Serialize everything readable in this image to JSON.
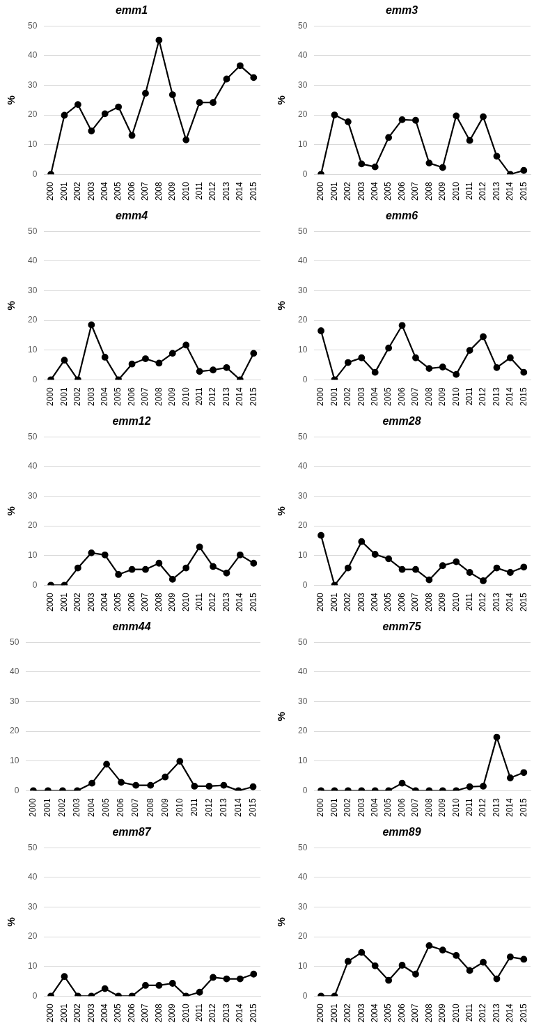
{
  "chart_data": [
    {
      "type": "line",
      "title": "emm1",
      "ylabel": "%",
      "categories": [
        "2000",
        "2001",
        "2002",
        "2003",
        "2004",
        "2005",
        "2006",
        "2007",
        "2008",
        "2009",
        "2010",
        "2011",
        "2012",
        "2013",
        "2014",
        "2015"
      ],
      "series": [
        {
          "color": "#000000",
          "values": [
            0,
            19.9,
            23.5,
            14.6,
            20.4,
            22.7,
            13.1,
            27.3,
            45.2,
            26.8,
            11.6,
            24.2,
            24.2,
            32.1,
            36.6,
            32.6
          ]
        }
      ],
      "ylim": [
        0,
        50
      ],
      "yticks": [
        0,
        10,
        20,
        30,
        40,
        50
      ],
      "grid": "y",
      "marker": "circle",
      "legend": false
    },
    {
      "type": "line",
      "title": "emm3",
      "ylabel": "%",
      "categories": [
        "2000",
        "2001",
        "2002",
        "2003",
        "2004",
        "2005",
        "2006",
        "2007",
        "2008",
        "2009",
        "2010",
        "2011",
        "2012",
        "2013",
        "2014",
        "2015"
      ],
      "series": [
        {
          "color": "#000000",
          "values": [
            0,
            20,
            17.7,
            3.5,
            2.5,
            12.4,
            18.4,
            18.2,
            3.8,
            2.3,
            19.7,
            11.4,
            19.4,
            6.1,
            0,
            1.3
          ]
        }
      ],
      "ylim": [
        0,
        50
      ],
      "yticks": [
        0,
        10,
        20,
        30,
        40,
        50
      ],
      "grid": "y",
      "marker": "circle",
      "legend": false
    },
    {
      "type": "line",
      "title": "emm4",
      "ylabel": "%",
      "categories": [
        "2000",
        "2001",
        "2002",
        "2003",
        "2004",
        "2005",
        "2006",
        "2007",
        "2008",
        "2009",
        "2010",
        "2011",
        "2012",
        "2013",
        "2014",
        "2015"
      ],
      "series": [
        {
          "color": "#000000",
          "values": [
            0,
            6.6,
            0,
            18.5,
            7.6,
            0,
            5.3,
            7.1,
            5.6,
            8.9,
            11.7,
            2.8,
            3.3,
            4.1,
            0,
            8.9
          ]
        }
      ],
      "ylim": [
        0,
        50
      ],
      "yticks": [
        0,
        10,
        20,
        30,
        40,
        50
      ],
      "grid": "y",
      "marker": "circle",
      "legend": false
    },
    {
      "type": "line",
      "title": "emm6",
      "ylabel": "%",
      "categories": [
        "2000",
        "2001",
        "2002",
        "2003",
        "2004",
        "2005",
        "2006",
        "2007",
        "2008",
        "2009",
        "2010",
        "2011",
        "2012",
        "2013",
        "2014",
        "2015"
      ],
      "series": [
        {
          "color": "#000000",
          "values": [
            16.5,
            0,
            5.8,
            7.4,
            2.5,
            10.7,
            18.3,
            7.4,
            3.8,
            4.3,
            1.8,
            9.9,
            14.5,
            4.1,
            7.4,
            2.5
          ]
        }
      ],
      "ylim": [
        0,
        50
      ],
      "yticks": [
        0,
        10,
        20,
        30,
        40,
        50
      ],
      "grid": "y",
      "marker": "circle",
      "legend": false
    },
    {
      "type": "line",
      "title": "emm12",
      "ylabel": "%",
      "categories": [
        "2000",
        "2001",
        "2002",
        "2003",
        "2004",
        "2005",
        "2006",
        "2007",
        "2008",
        "2009",
        "2010",
        "2011",
        "2012",
        "2013",
        "2014",
        "2015"
      ],
      "series": [
        {
          "color": "#000000",
          "values": [
            0,
            0,
            5.8,
            10.9,
            10.2,
            3.6,
            5.3,
            5.3,
            7.4,
            2.0,
            5.8,
            12.9,
            6.3,
            4.1,
            10.2,
            7.4
          ]
        }
      ],
      "ylim": [
        0,
        50
      ],
      "yticks": [
        0,
        10,
        20,
        30,
        40,
        50
      ],
      "grid": "y",
      "marker": "circle",
      "legend": false
    },
    {
      "type": "line",
      "title": "emm28",
      "ylabel": "%",
      "categories": [
        "2000",
        "2001",
        "2002",
        "2003",
        "2004",
        "2005",
        "2006",
        "2007",
        "2008",
        "2009",
        "2010",
        "2011",
        "2012",
        "2013",
        "2014",
        "2015"
      ],
      "series": [
        {
          "color": "#000000",
          "values": [
            16.8,
            0,
            5.8,
            14.7,
            10.4,
            8.9,
            5.3,
            5.3,
            1.8,
            6.6,
            7.9,
            4.3,
            1.5,
            5.8,
            4.3,
            6.1
          ]
        }
      ],
      "ylim": [
        0,
        50
      ],
      "yticks": [
        0,
        10,
        20,
        30,
        40,
        50
      ],
      "grid": "y",
      "marker": "circle",
      "legend": false
    },
    {
      "type": "line",
      "title": "emm44",
      "categories": [
        "2000",
        "2001",
        "2002",
        "2003",
        "2004",
        "2005",
        "2006",
        "2007",
        "2008",
        "2009",
        "2010",
        "2011",
        "2012",
        "2013",
        "2014",
        "2015"
      ],
      "series": [
        {
          "color": "#000000",
          "values": [
            0,
            0,
            0,
            0,
            2.5,
            8.9,
            2.8,
            1.8,
            1.8,
            4.6,
            9.9,
            1.5,
            1.5,
            1.8,
            0,
            1.3
          ]
        }
      ],
      "ylim": [
        0,
        50
      ],
      "yticks": [
        0,
        10,
        20,
        30,
        40,
        50
      ],
      "grid": "y",
      "marker": "circle",
      "legend": false
    },
    {
      "type": "line",
      "title": "emm75",
      "ylabel": "%",
      "categories": [
        "2000",
        "2001",
        "2002",
        "2003",
        "2004",
        "2005",
        "2006",
        "2007",
        "2008",
        "2009",
        "2010",
        "2011",
        "2012",
        "2013",
        "2014",
        "2015"
      ],
      "series": [
        {
          "color": "#000000",
          "values": [
            0,
            0,
            0,
            0,
            0,
            0,
            2.5,
            0,
            0,
            0,
            0,
            1.3,
            1.5,
            18,
            4.3,
            6.1
          ]
        }
      ],
      "ylim": [
        0,
        50
      ],
      "yticks": [
        0,
        10,
        20,
        30,
        40,
        50
      ],
      "grid": "y",
      "marker": "circle",
      "legend": false
    },
    {
      "type": "line",
      "title": "emm87",
      "ylabel": "%",
      "categories": [
        "2000",
        "2001",
        "2002",
        "2003",
        "2004",
        "2005",
        "2006",
        "2007",
        "2008",
        "2009",
        "2010",
        "2011",
        "2012",
        "2013",
        "2014",
        "2015"
      ],
      "series": [
        {
          "color": "#000000",
          "values": [
            0,
            6.6,
            0,
            0,
            2.5,
            0,
            0,
            3.6,
            3.6,
            4.3,
            0,
            1.3,
            6.3,
            5.8,
            5.8,
            7.4
          ]
        }
      ],
      "ylim": [
        0,
        50
      ],
      "yticks": [
        0,
        10,
        20,
        30,
        40,
        50
      ],
      "grid": "y",
      "marker": "circle",
      "legend": false
    },
    {
      "type": "line",
      "title": "emm89",
      "ylabel": "%",
      "categories": [
        "2000",
        "2001",
        "2002",
        "2003",
        "2004",
        "2005",
        "2006",
        "2007",
        "2008",
        "2009",
        "2010",
        "2011",
        "2012",
        "2013",
        "2014",
        "2015"
      ],
      "series": [
        {
          "color": "#000000",
          "values": [
            0,
            0,
            11.7,
            14.7,
            10.2,
            5.3,
            10.4,
            7.4,
            17.0,
            15.5,
            13.7,
            8.6,
            11.4,
            5.8,
            13.2,
            12.4
          ]
        }
      ],
      "ylim": [
        0,
        50
      ],
      "yticks": [
        0,
        10,
        20,
        30,
        40,
        50
      ],
      "grid": "y",
      "marker": "circle",
      "legend": false
    }
  ]
}
